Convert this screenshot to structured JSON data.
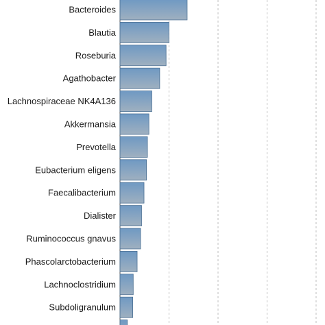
{
  "chart_data": {
    "type": "bar",
    "orientation": "horizontal",
    "categories": [
      "Bacteroides",
      "Blautia",
      "Roseburia",
      "Agathobacter",
      "Lachnospiraceae NK4A136",
      "Akkermansia",
      "Prevotella",
      "Eubacterium eligens",
      "Faecalibacterium",
      "Dialister",
      "Ruminococcus gnavus",
      "Phascolarctobacterium",
      "Lachnoclostridium",
      "Subdoligranulum",
      ""
    ],
    "values": [
      1.37,
      1.0,
      0.94,
      0.81,
      0.65,
      0.59,
      0.56,
      0.54,
      0.49,
      0.44,
      0.42,
      0.35,
      0.27,
      0.26,
      0.15
    ],
    "xlim": [
      0,
      4.1
    ],
    "gridlines_x": [
      1,
      2,
      3,
      4
    ],
    "grid": true,
    "title": "",
    "xlabel": "",
    "ylabel": "",
    "colors": {
      "bar_top": "#6f99c3",
      "bar_bottom": "#9fb0c0"
    }
  }
}
